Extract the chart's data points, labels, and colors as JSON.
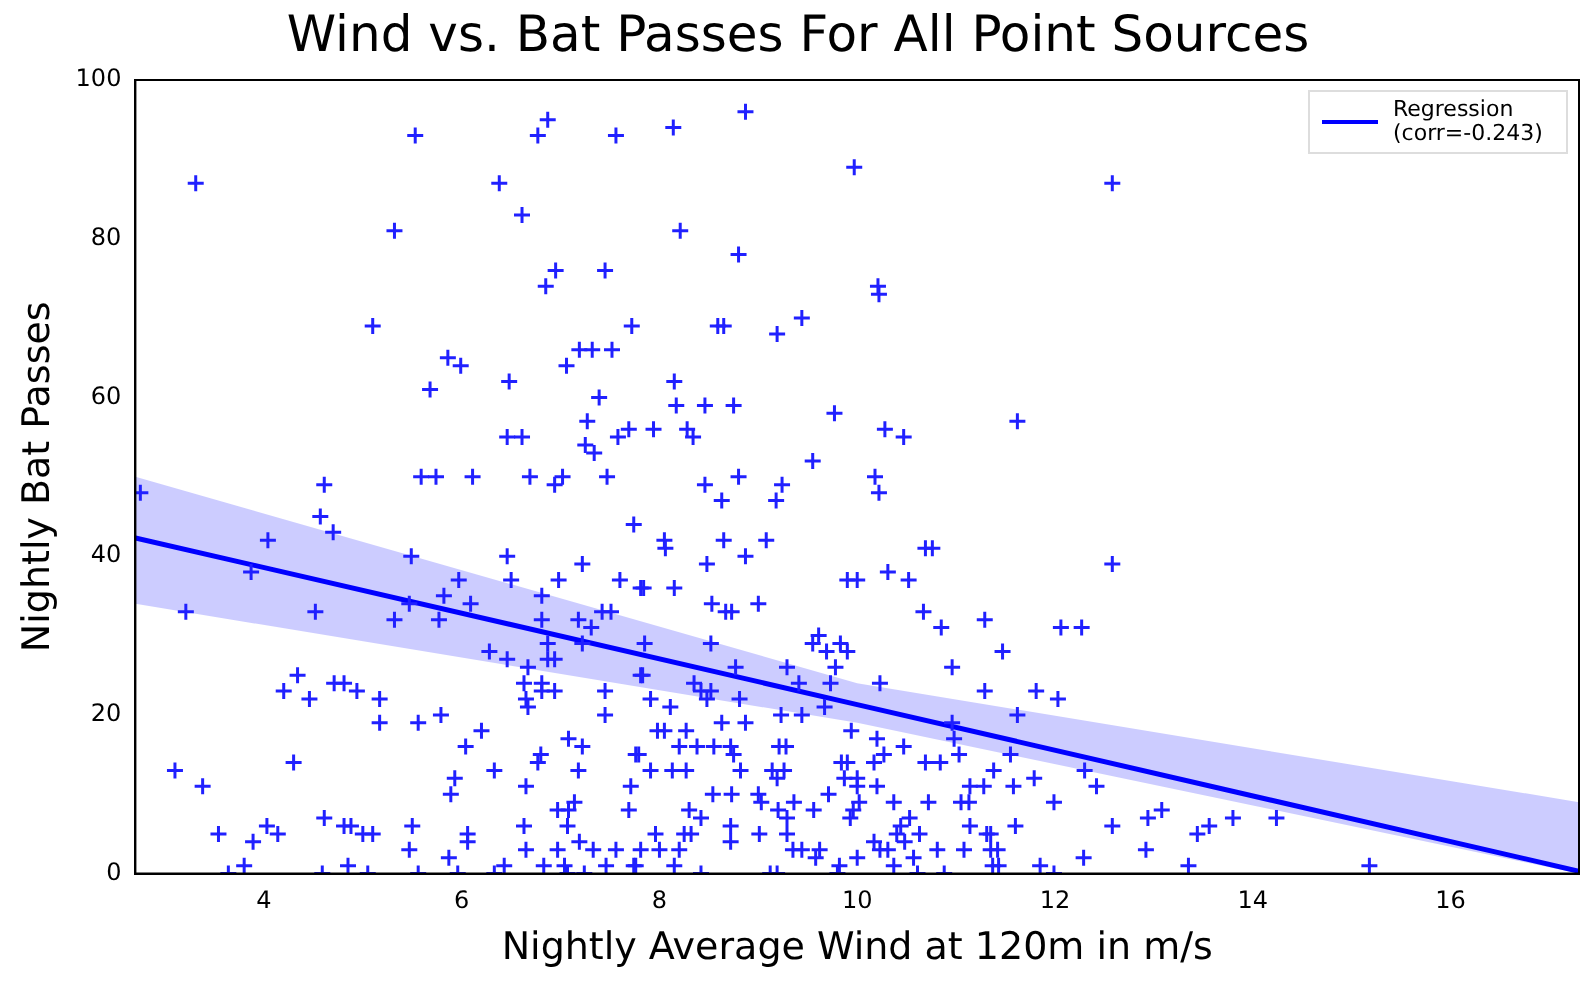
{
  "chart_data": {
    "type": "scatter",
    "title": "Wind vs. Bat Passes For All Point Sources",
    "xlabel": "Nightly Average Wind at 120m in m/s",
    "ylabel": "Nightly Bat Passes",
    "xlim": [
      2.7,
      17.3
    ],
    "xticks": [
      4,
      6,
      8,
      10,
      12,
      14,
      16
    ],
    "ylim": [
      0,
      100
    ],
    "yticks": [
      0,
      20,
      40,
      60,
      80,
      100
    ],
    "grid": false,
    "legend": "top right",
    "marker": "cross",
    "series": [
      {
        "color": "#2020ff",
        "x": [
          3.31,
          5.53,
          6.87,
          6.77,
          7.56,
          6.38,
          6.61,
          5.32,
          6.95,
          6.85,
          7.45,
          5.1,
          7.72,
          5.86,
          5.99,
          5.68,
          6.48,
          7.06,
          7.19,
          7.32,
          7.52,
          7.39,
          7.27,
          7.25,
          7.34,
          7.58,
          7.69,
          6.46,
          6.61,
          5.59,
          5.74,
          6.11,
          6.69,
          7.02,
          7.47,
          4.61,
          6.94,
          8.87,
          8.14,
          9.97,
          8.21,
          8.8,
          10.21,
          10.22,
          8.59,
          8.65,
          9.19,
          9.44,
          8.15,
          8.17,
          8.46,
          8.75,
          7.94,
          8.28,
          8.34,
          9.77,
          10.28,
          10.47,
          11.62,
          9.55,
          8.46,
          8.8,
          9.24,
          10.18,
          10.22,
          12.58,
          2.75,
          4.57,
          4.7,
          4.04,
          3.87,
          3.21,
          4.52,
          5.49,
          5.47,
          5.32,
          5.77,
          5.82,
          5.97,
          6.09,
          6.46,
          6.5,
          6.81,
          6.98,
          7.22,
          7.6,
          7.74,
          7.81,
          6.81,
          7.18,
          7.31,
          7.42,
          7.51,
          7.22,
          6.87,
          6.87,
          6.94,
          6.28,
          6.46,
          6.67,
          6.63,
          6.81,
          6.81,
          6.94,
          6.65,
          6.67,
          7.45,
          7.45,
          7.81,
          4.34,
          4.2,
          4.46,
          4.71,
          4.81,
          4.94,
          5.17,
          5.17,
          5.56,
          5.79,
          6.2,
          6.04,
          7.08,
          7.22,
          6.8,
          6.77,
          3.1,
          4.3,
          3.38,
          5.93,
          5.89,
          6.33,
          6.65,
          7.18,
          7.79,
          7.71,
          7.69,
          7.14,
          7.08,
          6.97,
          6.06,
          6.06,
          5.5,
          6.63,
          7.07,
          7.19,
          3.54,
          4.03,
          4.14,
          3.89,
          4.61,
          4.81,
          4.88,
          5.0,
          5.1,
          5.47,
          5.87,
          3.8,
          3.64,
          4.85,
          4.59,
          5.05,
          5.56,
          5.96,
          6.33,
          6.43,
          6.65,
          6.83,
          6.97,
          7.04,
          7.07,
          7.24,
          7.33,
          7.46,
          7.56,
          7.74,
          7.81,
          8.63,
          9.18,
          8.05,
          8.06,
          8.65,
          9.08,
          8.87,
          8.48,
          7.84,
          8.15,
          9.9,
          10.0,
          10.31,
          10.52,
          10.69,
          10.76,
          8.53,
          8.67,
          8.73,
          9.0,
          10.67,
          10.85,
          11.29,
          12.06,
          12.27,
          11.47,
          10.96,
          9.61,
          9.55,
          9.69,
          9.83,
          9.9,
          9.78,
          9.29,
          8.52,
          7.85,
          8.77,
          7.83,
          8.35,
          8.42,
          8.52,
          9.41,
          9.73,
          10.23,
          11.29,
          11.81,
          12.03,
          7.91,
          8.48,
          8.81,
          8.11,
          9.67,
          9.23,
          9.44,
          11.62,
          8.63,
          8.87,
          7.98,
          8.05,
          8.27,
          9.94,
          10.96,
          10.98,
          10.2,
          10.47,
          8.2,
          8.38,
          8.55,
          8.72,
          9.21,
          9.28,
          7.76,
          8.75,
          10.27,
          10.69,
          10.84,
          11.03,
          11.55,
          7.91,
          8.13,
          8.27,
          8.82,
          9.14,
          9.26,
          9.84,
          9.9,
          10.17,
          11.38,
          12.3,
          11.79,
          9.19,
          9.87,
          10.0,
          10.2,
          10.0,
          11.14,
          11.28,
          11.58,
          8.54,
          8.73,
          9.0,
          9.03,
          9.36,
          9.71,
          10.02,
          10.37,
          10.72,
          11.05,
          11.13,
          11.99,
          8.3,
          8.42,
          9.2,
          9.29,
          9.56,
          9.96,
          9.93,
          10.53,
          10.44,
          10.4,
          11.14,
          11.31,
          11.6,
          8.72,
          7.96,
          8.25,
          8.32,
          9.01,
          9.29,
          10.63,
          8.72,
          11.35,
          10.17,
          10.23,
          10.31,
          10.48,
          8.0,
          8.2,
          9.35,
          9.44,
          9.62,
          10.81,
          11.08,
          11.35,
          11.42,
          12.29,
          7.76,
          8.15,
          9.58,
          9.82,
          10.0,
          10.37,
          10.57,
          11.37,
          11.43,
          11.85,
          8.42,
          9.12,
          9.19,
          9.8,
          10.61,
          10.88,
          11.99,
          12.58,
          12.42,
          12.58,
          12.94,
          13.08,
          12.92,
          13.35,
          13.44,
          13.56,
          13.8,
          14.24,
          15.18
        ],
        "values": [
          87,
          93,
          95,
          93,
          93,
          87,
          83,
          81,
          76,
          74,
          76,
          69,
          69,
          65,
          64,
          61,
          62,
          64,
          66,
          66,
          66,
          60,
          57,
          54,
          53,
          55,
          56,
          55,
          55,
          50,
          50,
          50,
          50,
          50,
          50,
          49,
          49,
          96,
          94,
          89,
          81,
          78,
          74,
          73,
          69,
          69,
          68,
          70,
          62,
          59,
          59,
          59,
          56,
          56,
          55,
          58,
          56,
          55,
          57,
          52,
          49,
          50,
          49,
          50,
          48,
          87,
          48,
          45,
          43,
          42,
          38,
          33,
          33,
          40,
          34,
          32,
          32,
          35,
          37,
          34,
          40,
          37,
          35,
          37,
          39,
          37,
          44,
          36,
          32,
          32,
          31,
          33,
          33,
          29,
          29,
          27,
          27,
          28,
          27,
          26,
          24,
          24,
          23,
          23,
          22,
          21,
          23,
          20,
          25,
          25,
          23,
          22,
          24,
          24,
          23,
          22,
          19,
          19,
          20,
          18,
          16,
          17,
          16,
          15,
          14,
          13,
          14,
          11,
          12,
          10,
          13,
          11,
          13,
          15,
          11,
          8,
          9,
          8,
          8,
          5,
          4,
          6,
          6,
          6,
          4,
          5,
          6,
          5,
          4,
          7,
          6,
          6,
          5,
          5,
          3,
          2,
          1,
          0,
          1,
          0,
          0,
          0,
          0,
          0,
          1,
          3,
          1,
          3,
          1,
          0,
          0,
          3,
          1,
          3,
          1,
          3,
          47,
          47,
          42,
          41,
          42,
          42,
          40,
          39,
          36,
          36,
          37,
          37,
          38,
          37,
          41,
          41,
          34,
          33,
          33,
          34,
          33,
          31,
          32,
          31,
          31,
          28,
          26,
          30,
          29,
          28,
          29,
          28,
          26,
          26,
          29,
          29,
          26,
          25,
          24,
          23,
          23,
          24,
          24,
          24,
          23,
          23,
          22,
          22,
          22,
          22,
          21,
          21,
          20,
          20,
          20,
          19,
          19,
          18,
          18,
          18,
          18,
          19,
          17,
          17,
          16,
          16,
          16,
          16,
          16,
          16,
          16,
          15,
          15,
          15,
          14,
          14,
          15,
          15,
          13,
          13,
          13,
          13,
          13,
          13,
          14,
          14,
          14,
          13,
          13,
          12,
          12,
          12,
          12,
          11,
          11,
          11,
          11,
          11,
          10,
          10,
          10,
          9,
          9,
          10,
          9,
          9,
          9,
          9,
          9,
          9,
          8,
          7,
          8,
          7,
          8,
          8,
          7,
          7,
          6,
          5,
          6,
          5,
          6,
          6,
          5,
          5,
          5,
          5,
          5,
          5,
          4,
          5,
          4,
          3,
          3,
          4,
          3,
          3,
          3,
          3,
          3,
          3,
          3,
          3,
          3,
          2,
          1,
          1,
          2,
          1,
          2,
          1,
          2,
          1,
          1,
          1,
          0,
          0,
          0,
          0,
          0,
          0,
          0,
          39,
          11,
          6,
          7,
          8,
          3,
          1,
          5,
          6,
          7,
          7,
          1
        ]
      },
      {
        "type": "line",
        "name": "Regression (corr=-0.243)",
        "color": "#0000ff",
        "marker": "none",
        "x": [
          2.7,
          10,
          17.3
        ],
        "values": [
          42.3,
          21.3,
          0.3
        ],
        "lower": [
          34,
          19,
          0
        ],
        "upper": [
          50,
          24,
          9
        ]
      }
    ]
  }
}
